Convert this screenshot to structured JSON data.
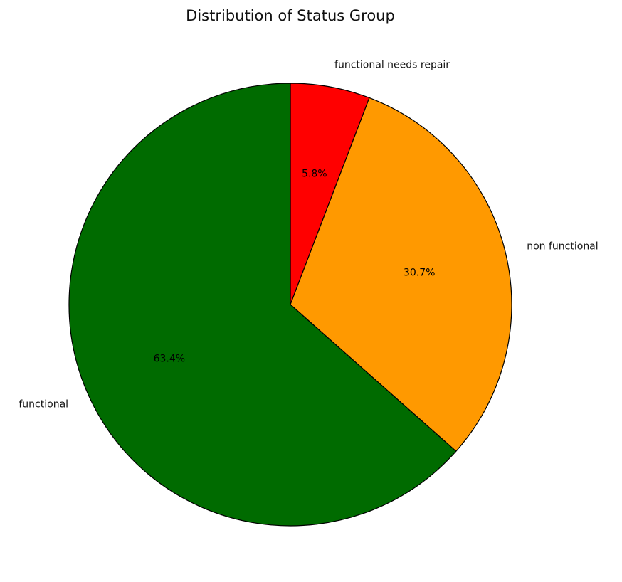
{
  "chart_data": {
    "type": "pie",
    "title": "Distribution of Status Group",
    "start_angle_deg": 90,
    "direction": "clockwise",
    "slices": [
      {
        "label": "functional needs repair",
        "pct_label": "5.8%",
        "value": 5.8,
        "color": "#ff0000"
      },
      {
        "label": "non functional",
        "pct_label": "30.7%",
        "value": 30.7,
        "color": "#ff9900"
      },
      {
        "label": "functional",
        "pct_label": "63.4%",
        "value": 63.4,
        "color": "#006b00"
      }
    ]
  }
}
